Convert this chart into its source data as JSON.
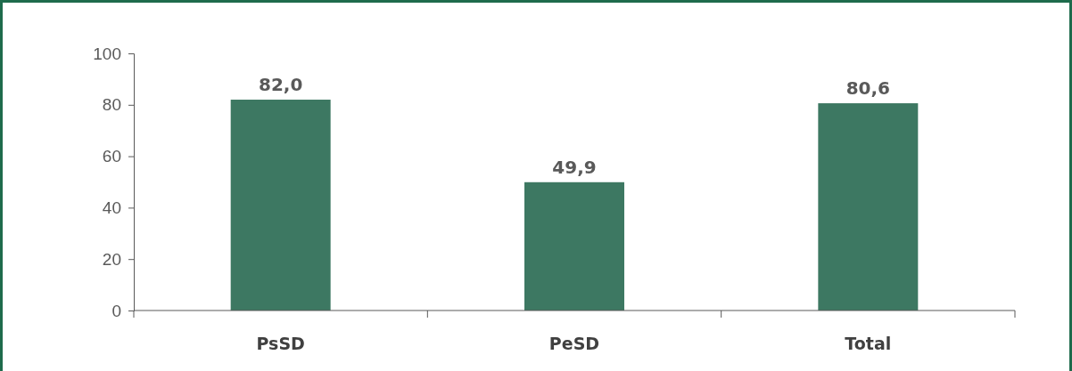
{
  "chart_data": {
    "type": "bar",
    "categories": [
      "PsSD",
      "PeSD",
      "Total"
    ],
    "values": [
      82.0,
      49.9,
      80.6
    ],
    "color": "#3d7862",
    "value_labels": [
      "82,0",
      "49,9",
      "80,6"
    ],
    "ylim": [
      0,
      100
    ],
    "yticks": [
      0,
      20,
      40,
      60,
      80,
      100
    ],
    "grid": false
  }
}
